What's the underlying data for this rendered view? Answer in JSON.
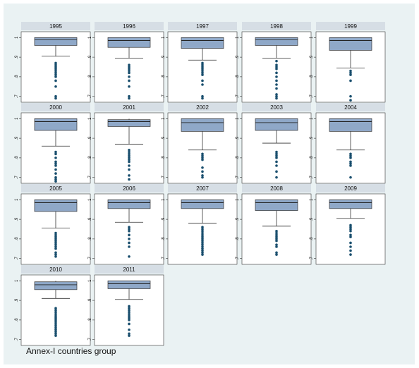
{
  "chart_data": {
    "type": "box",
    "facet_by": "year",
    "layout": "5 columns x 4 rows",
    "ylim": [
      0.67,
      1.03
    ],
    "yticks": [
      0.7,
      0.8,
      0.9,
      1
    ],
    "ytick_labels": [
      ".7",
      ".8",
      ".9",
      "1"
    ],
    "grid": false,
    "colors": {
      "box_fill": "#8fa8c8",
      "marker": "#1a4f6e",
      "strip": "#d6dee5",
      "background": "#eaf2f3"
    },
    "panels": [
      {
        "year": "1995",
        "q1": 0.96,
        "median": 0.99,
        "q3": 1.0,
        "whisker_low": 0.905,
        "whisker_high": 1.0,
        "outliers": [
          0.87,
          0.86,
          0.85,
          0.84,
          0.83,
          0.82,
          0.81,
          0.8,
          0.78,
          0.75,
          0.7,
          0.69
        ]
      },
      {
        "year": "1996",
        "q1": 0.95,
        "median": 0.985,
        "q3": 1.0,
        "whisker_low": 0.895,
        "whisker_high": 1.0,
        "outliers": [
          0.86,
          0.85,
          0.84,
          0.83,
          0.82,
          0.8,
          0.78,
          0.75,
          0.7,
          0.69
        ]
      },
      {
        "year": "1997",
        "q1": 0.945,
        "median": 0.985,
        "q3": 1.0,
        "whisker_low": 0.885,
        "whisker_high": 1.0,
        "outliers": [
          0.87,
          0.86,
          0.85,
          0.84,
          0.83,
          0.82,
          0.81,
          0.78,
          0.76,
          0.7,
          0.69
        ]
      },
      {
        "year": "1998",
        "q1": 0.96,
        "median": 0.99,
        "q3": 1.0,
        "whisker_low": 0.895,
        "whisker_high": 1.0,
        "outliers": [
          0.88,
          0.86,
          0.85,
          0.84,
          0.82,
          0.8,
          0.78,
          0.76,
          0.74,
          0.71,
          0.7,
          0.69
        ]
      },
      {
        "year": "1999",
        "q1": 0.935,
        "median": 0.985,
        "q3": 1.0,
        "whisker_low": 0.845,
        "whisker_high": 1.0,
        "outliers": [
          0.83,
          0.82,
          0.81,
          0.78,
          0.7,
          0.68
        ]
      },
      {
        "year": "2000",
        "q1": 0.94,
        "median": 0.985,
        "q3": 1.0,
        "whisker_low": 0.86,
        "whisker_high": 1.0,
        "outliers": [
          0.83,
          0.82,
          0.8,
          0.78,
          0.77,
          0.76,
          0.74,
          0.72,
          0.7,
          0.69,
          0.68
        ]
      },
      {
        "year": "2001",
        "q1": 0.96,
        "median": 0.985,
        "q3": 0.995,
        "whisker_low": 0.87,
        "whisker_high": 1.0,
        "outliers": [
          0.84,
          0.83,
          0.82,
          0.81,
          0.8,
          0.79,
          0.78,
          0.76,
          0.74,
          0.71,
          0.69
        ]
      },
      {
        "year": "2002",
        "q1": 0.935,
        "median": 0.98,
        "q3": 1.0,
        "whisker_low": 0.84,
        "whisker_high": 1.0,
        "outliers": [
          0.82,
          0.81,
          0.8,
          0.79,
          0.75,
          0.73,
          0.71,
          0.7
        ]
      },
      {
        "year": "2003",
        "q1": 0.94,
        "median": 0.98,
        "q3": 1.0,
        "whisker_low": 0.875,
        "whisker_high": 1.0,
        "outliers": [
          0.83,
          0.82,
          0.81,
          0.8,
          0.78,
          0.76,
          0.73,
          0.7
        ]
      },
      {
        "year": "2004",
        "q1": 0.935,
        "median": 0.985,
        "q3": 1.0,
        "whisker_low": 0.84,
        "whisker_high": 1.0,
        "outliers": [
          0.82,
          0.81,
          0.8,
          0.78,
          0.77,
          0.76,
          0.7
        ]
      },
      {
        "year": "2005",
        "q1": 0.94,
        "median": 0.985,
        "q3": 1.0,
        "whisker_low": 0.855,
        "whisker_high": 1.0,
        "outliers": [
          0.83,
          0.82,
          0.81,
          0.8,
          0.79,
          0.78,
          0.77,
          0.76,
          0.75,
          0.73,
          0.72,
          0.71
        ]
      },
      {
        "year": "2006",
        "q1": 0.955,
        "median": 0.985,
        "q3": 1.0,
        "whisker_low": 0.885,
        "whisker_high": 1.0,
        "outliers": [
          0.86,
          0.85,
          0.84,
          0.82,
          0.8,
          0.78,
          0.76,
          0.71
        ]
      },
      {
        "year": "2007",
        "q1": 0.955,
        "median": 0.985,
        "q3": 1.0,
        "whisker_low": 0.88,
        "whisker_high": 1.0,
        "outliers": [
          0.86,
          0.85,
          0.84,
          0.83,
          0.82,
          0.81,
          0.8,
          0.79,
          0.78,
          0.77,
          0.76,
          0.75,
          0.74,
          0.73,
          0.72
        ]
      },
      {
        "year": "2008",
        "q1": 0.945,
        "median": 0.985,
        "q3": 1.0,
        "whisker_low": 0.865,
        "whisker_high": 1.0,
        "outliers": [
          0.84,
          0.83,
          0.82,
          0.81,
          0.8,
          0.79,
          0.77,
          0.76,
          0.73,
          0.72
        ]
      },
      {
        "year": "2009",
        "q1": 0.955,
        "median": 0.985,
        "q3": 1.0,
        "whisker_low": 0.905,
        "whisker_high": 1.0,
        "outliers": [
          0.87,
          0.86,
          0.85,
          0.84,
          0.82,
          0.81,
          0.78,
          0.76,
          0.74,
          0.72
        ]
      },
      {
        "year": "2010",
        "q1": 0.955,
        "median": 0.98,
        "q3": 0.995,
        "whisker_low": 0.91,
        "whisker_high": 1.0,
        "outliers": [
          0.86,
          0.85,
          0.84,
          0.83,
          0.82,
          0.81,
          0.8,
          0.79,
          0.78,
          0.77,
          0.76,
          0.75,
          0.74,
          0.73,
          0.72
        ]
      },
      {
        "year": "2011",
        "q1": 0.96,
        "median": 0.985,
        "q3": 1.0,
        "whisker_low": 0.905,
        "whisker_high": 1.0,
        "outliers": [
          0.87,
          0.86,
          0.85,
          0.84,
          0.83,
          0.82,
          0.81,
          0.8,
          0.78,
          0.75,
          0.73,
          0.72
        ]
      }
    ],
    "caption": "Annex-I countries group"
  }
}
